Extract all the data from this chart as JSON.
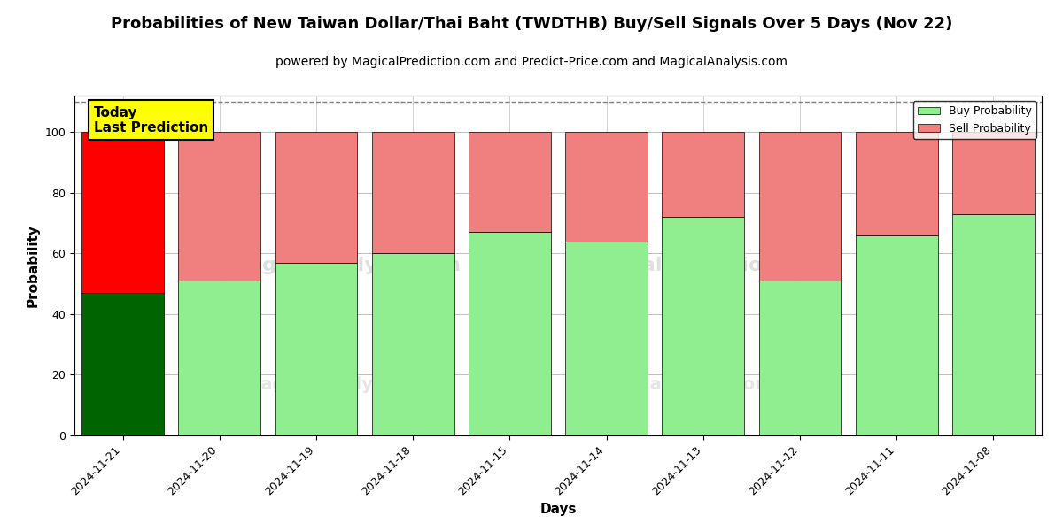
{
  "title": "Probabilities of New Taiwan Dollar/Thai Baht (TWDTHB) Buy/Sell Signals Over 5 Days (Nov 22)",
  "subtitle": "powered by MagicalPrediction.com and Predict-Price.com and MagicalAnalysis.com",
  "xlabel": "Days",
  "ylabel": "Probability",
  "categories": [
    "2024-11-21",
    "2024-11-20",
    "2024-11-19",
    "2024-11-18",
    "2024-11-15",
    "2024-11-14",
    "2024-11-13",
    "2024-11-12",
    "2024-11-11",
    "2024-11-08"
  ],
  "buy_values": [
    47,
    51,
    57,
    60,
    67,
    64,
    72,
    51,
    66,
    73
  ],
  "sell_values": [
    53,
    49,
    43,
    40,
    33,
    36,
    28,
    49,
    34,
    27
  ],
  "today_index": 0,
  "today_buy_color": "#006400",
  "today_sell_color": "#FF0000",
  "other_buy_color": "#90EE90",
  "other_sell_color": "#F08080",
  "today_label_bg": "#FFFF00",
  "today_label_text": "Today\nLast Prediction",
  "ylim": [
    0,
    112
  ],
  "yticks": [
    0,
    20,
    40,
    60,
    80,
    100
  ],
  "dashed_line_y": 110,
  "legend_buy": "Buy Probability",
  "legend_sell": "Sell Probability",
  "title_fontsize": 13,
  "subtitle_fontsize": 10,
  "axis_label_fontsize": 11,
  "tick_fontsize": 9,
  "bar_width": 0.85
}
